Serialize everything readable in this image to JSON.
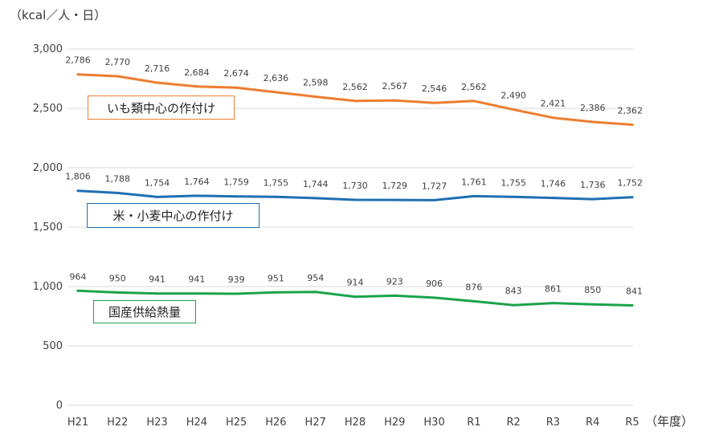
{
  "unit_label": "（kcal／人・日）",
  "x_unit": "（年度）",
  "legend": {
    "imo": "いも類中心の作付け",
    "rice": "米・小麦中心の作付け",
    "supply": "国産供給熱量"
  },
  "colors": {
    "imo": "#ED7D31",
    "rice": "#1F6FB2",
    "supply": "#1AA34A",
    "grid": "#d9d9d9"
  },
  "chart_data": {
    "type": "line",
    "categories": [
      "H21",
      "H22",
      "H23",
      "H24",
      "H25",
      "H26",
      "H27",
      "H28",
      "H29",
      "H30",
      "R1",
      "R2",
      "R3",
      "R4",
      "R5"
    ],
    "ylim": [
      0,
      3000
    ],
    "yticks": [
      0,
      500,
      1000,
      1500,
      2000,
      2500,
      3000
    ],
    "ytick_labels": [
      "0",
      "500",
      "1,000",
      "1,500",
      "2,000",
      "2,500",
      "3,000"
    ],
    "grid": true,
    "series": [
      {
        "name": "いも類中心の作付け",
        "key": "imo",
        "values": [
          2786,
          2770,
          2716,
          2684,
          2674,
          2636,
          2598,
          2562,
          2567,
          2546,
          2562,
          2490,
          2421,
          2386,
          2362
        ],
        "labels": [
          "2,786",
          "2,770",
          "2,716",
          "2,684",
          "2,674",
          "2,636",
          "2,598",
          "2,562",
          "2,567",
          "2,546",
          "2,562",
          "2,490",
          "2,421",
          "2,386",
          "2,362"
        ]
      },
      {
        "name": "米・小麦中心の作付け",
        "key": "rice",
        "values": [
          1806,
          1788,
          1754,
          1764,
          1759,
          1755,
          1744,
          1730,
          1729,
          1727,
          1761,
          1755,
          1746,
          1736,
          1752
        ],
        "labels": [
          "1,806",
          "1,788",
          "1,754",
          "1,764",
          "1,759",
          "1,755",
          "1,744",
          "1,730",
          "1,729",
          "1,727",
          "1,761",
          "1,755",
          "1,746",
          "1,736",
          "1,752"
        ]
      },
      {
        "name": "国産供給熱量",
        "key": "supply",
        "values": [
          964,
          950,
          941,
          941,
          939,
          951,
          954,
          914,
          923,
          906,
          876,
          843,
          861,
          850,
          841
        ],
        "labels": [
          "964",
          "950",
          "941",
          "941",
          "939",
          "951",
          "954",
          "914",
          "923",
          "906",
          "876",
          "843",
          "861",
          "850",
          "841"
        ]
      }
    ]
  }
}
